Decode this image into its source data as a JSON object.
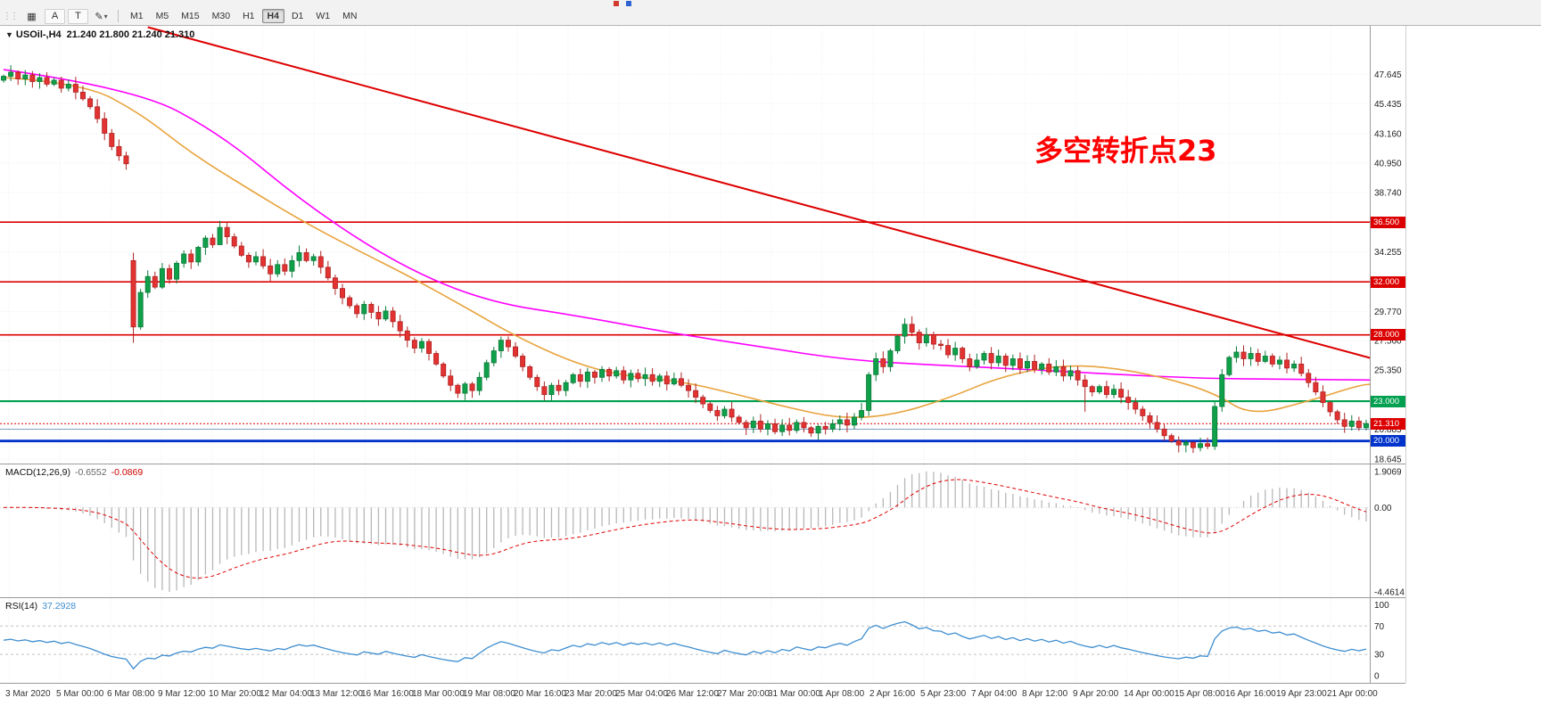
{
  "window": {
    "top_icons": [
      {
        "name": "window-icon-red",
        "color": "#d23a2e"
      },
      {
        "name": "window-icon-blue",
        "color": "#2e62d2"
      }
    ]
  },
  "toolbar": {
    "handle_glyph": "⋮⋮",
    "tools": [
      {
        "name": "chart-grid",
        "glyph": "▦"
      },
      {
        "name": "annotate-letter",
        "glyph": "A"
      },
      {
        "name": "text-tool",
        "glyph": "T"
      },
      {
        "name": "draw-tools",
        "glyph": "✎",
        "dropdown": "▾"
      }
    ],
    "timeframes": [
      {
        "label": "M1",
        "active": false
      },
      {
        "label": "M5",
        "active": false
      },
      {
        "label": "M15",
        "active": false
      },
      {
        "label": "M30",
        "active": false
      },
      {
        "label": "H1",
        "active": false
      },
      {
        "label": "H4",
        "active": true
      },
      {
        "label": "D1",
        "active": false
      },
      {
        "label": "W1",
        "active": false
      },
      {
        "label": "MN",
        "active": false
      }
    ]
  },
  "chart": {
    "title": {
      "collapse_icon": "▼",
      "symbol_period": "USOil-,H4",
      "ohlc": "21.240 21.800 21.240 21.310"
    },
    "annotation": {
      "text": "多空转折点23",
      "color": "#ff0000"
    },
    "hlines": [
      {
        "price": 36.5,
        "color": "#dd0000",
        "width": 1.6,
        "name": "resistance-line-36500"
      },
      {
        "price": 32.0,
        "color": "#dd0000",
        "width": 1.6,
        "name": "resistance-line-32000"
      },
      {
        "price": 28.0,
        "color": "#dd0000",
        "width": 1.6,
        "name": "resistance-line-28000"
      },
      {
        "price": 23.0,
        "color": "#00a050",
        "width": 2.2,
        "name": "support-line-23000"
      },
      {
        "price": 21.31,
        "color": "#dd0000",
        "width": 1,
        "dash": "2 2",
        "name": "last-price-line"
      },
      {
        "price": 20.885,
        "color": "#7f9fc6",
        "width": 1,
        "name": "minor-line-20885"
      },
      {
        "price": 20.0,
        "color": "#0033cc",
        "width": 2.8,
        "name": "support-line-20000"
      }
    ],
    "scale_labels": [
      {
        "price": 47.645,
        "text": "47.645"
      },
      {
        "price": 45.435,
        "text": "45.435"
      },
      {
        "price": 43.16,
        "text": "43.160"
      },
      {
        "price": 40.95,
        "text": "40.950"
      },
      {
        "price": 38.74,
        "text": "38.740"
      },
      {
        "price": 34.255,
        "text": "34.255"
      },
      {
        "price": 29.77,
        "text": "29.770"
      },
      {
        "price": 27.56,
        "text": "27.560"
      },
      {
        "price": 25.35,
        "text": "25.350"
      },
      {
        "price": 20.885,
        "text": "20.885"
      },
      {
        "price": 18.645,
        "text": "18.645"
      }
    ],
    "scale_tags": [
      {
        "price": 36.5,
        "label": "36.500",
        "bg": "#dd0000"
      },
      {
        "price": 32.0,
        "label": "32.000",
        "bg": "#dd0000"
      },
      {
        "price": 28.0,
        "label": "28.000",
        "bg": "#dd0000"
      },
      {
        "price": 23.0,
        "label": "23.000",
        "bg": "#00a050"
      },
      {
        "price": 21.31,
        "label": "21.310",
        "bg": "#dd0000"
      },
      {
        "price": 20.0,
        "label": "20.000",
        "bg": "#0033cc"
      }
    ]
  },
  "indicators": {
    "macd": {
      "label": "MACD(12,26,9)",
      "value_main": "-0.6552",
      "value_signal": "-0.0869",
      "scale_labels": [
        {
          "v": 1.9069,
          "t": "1.9069"
        },
        {
          "v": 0,
          "t": "0.00"
        },
        {
          "v": -4.4614,
          "t": "-4.4614"
        }
      ]
    },
    "rsi": {
      "label": "RSI(14)",
      "value": "37.2928",
      "scale_labels": [
        {
          "v": 100,
          "t": "100"
        },
        {
          "v": 70,
          "t": "70"
        },
        {
          "v": 30,
          "t": "30"
        },
        {
          "v": 0,
          "t": "0"
        }
      ],
      "level_lines": [
        70,
        30
      ]
    }
  },
  "chart_data": {
    "type": "candlestick",
    "symbol": "USOil-",
    "timeframe": "H4",
    "last_bar_ohlc": {
      "open": 21.24,
      "high": 21.8,
      "low": 21.24,
      "close": 21.31
    },
    "annotation": "多空转折点23",
    "horizontal_levels": [
      36.5,
      32.0,
      28.0,
      23.0,
      21.31,
      20.885,
      20.0
    ],
    "macd_readout": {
      "params": "12,26,9",
      "main": -0.6552,
      "signal": -0.0869,
      "scale_max": 1.9069,
      "scale_min": -4.4614
    },
    "rsi_readout": {
      "period": 14,
      "value": 37.2928
    },
    "closes": [
      47.5,
      47.8,
      47.3,
      47.6,
      47.1,
      47.4,
      46.9,
      47.2,
      46.6,
      46.9,
      46.3,
      45.8,
      45.2,
      44.3,
      43.2,
      42.2,
      41.5,
      40.9,
      28.6,
      31.2,
      32.4,
      31.6,
      33.0,
      32.2,
      33.4,
      34.1,
      33.5,
      34.6,
      35.3,
      34.8,
      36.1,
      35.4,
      34.7,
      34.0,
      33.5,
      33.9,
      33.2,
      32.6,
      33.3,
      32.8,
      33.6,
      34.2,
      33.6,
      33.9,
      33.1,
      32.3,
      31.5,
      30.8,
      30.2,
      29.6,
      30.3,
      29.7,
      29.2,
      29.8,
      29.0,
      28.3,
      27.6,
      27.0,
      27.5,
      26.6,
      25.8,
      24.9,
      24.2,
      23.6,
      24.3,
      23.8,
      24.8,
      25.9,
      26.8,
      27.6,
      27.1,
      26.4,
      25.6,
      24.8,
      24.1,
      23.5,
      24.2,
      23.8,
      24.4,
      25.0,
      24.5,
      25.2,
      24.8,
      25.4,
      24.9,
      25.3,
      24.6,
      25.1,
      24.7,
      25.0,
      24.5,
      24.9,
      24.3,
      24.7,
      24.2,
      23.8,
      23.3,
      22.8,
      22.3,
      21.9,
      22.4,
      21.8,
      21.4,
      21.0,
      21.5,
      20.9,
      21.3,
      20.7,
      21.2,
      20.8,
      21.4,
      21.0,
      20.6,
      21.1,
      20.9,
      21.3,
      21.6,
      21.2,
      21.8,
      22.3,
      25.0,
      26.2,
      25.6,
      26.8,
      27.9,
      28.8,
      28.2,
      27.4,
      28.0,
      27.3,
      27.2,
      26.5,
      27.0,
      26.2,
      25.6,
      26.1,
      26.6,
      25.9,
      26.4,
      25.7,
      26.2,
      25.5,
      26.0,
      25.4,
      25.8,
      25.2,
      25.6,
      24.9,
      25.3,
      24.6,
      24.1,
      23.7,
      24.1,
      23.5,
      23.9,
      23.3,
      22.9,
      22.4,
      21.9,
      21.4,
      20.9,
      20.4,
      20.0,
      19.7,
      19.9,
      19.5,
      19.8,
      19.6,
      22.6,
      25.0,
      26.3,
      26.7,
      26.2,
      26.6,
      26.0,
      26.4,
      25.8,
      26.1,
      25.5,
      25.8,
      25.1,
      24.4,
      23.7,
      22.9,
      22.2,
      21.6,
      21.1,
      21.5,
      21.0,
      21.31
    ],
    "open_overrides": {
      "0": 47.2,
      "18": 33.6
    },
    "hl_overrides": {
      "18": [
        34.2,
        27.4
      ],
      "30": [
        36.6,
        34.9
      ],
      "120": [
        25.2,
        21.9
      ],
      "126": [
        29.4,
        27.9
      ],
      "150": [
        25.0,
        22.2
      ],
      "165": [
        19.8,
        19.1
      ],
      "189": [
        21.6,
        20.8
      ]
    },
    "trendline": {
      "points": [
        [
          20,
          51.2
        ],
        [
          192,
          25.9
        ]
      ],
      "color": "#dd0000"
    },
    "ma_slow_magenta": [
      [
        0,
        48.0
      ],
      [
        18,
        46.6
      ],
      [
        30,
        43.2
      ],
      [
        42,
        37.8
      ],
      [
        55,
        33.2
      ],
      [
        67,
        30.5
      ],
      [
        80,
        29.4
      ],
      [
        92,
        28.2
      ],
      [
        105,
        27.1
      ],
      [
        117,
        26.1
      ],
      [
        130,
        25.7
      ],
      [
        142,
        25.4
      ],
      [
        155,
        25.0
      ],
      [
        167,
        24.7
      ],
      [
        179,
        24.65
      ],
      [
        190,
        24.6
      ]
    ],
    "ma_fast_orange": [
      [
        0,
        47.4
      ],
      [
        11,
        47.0
      ],
      [
        19,
        44.7
      ],
      [
        26,
        41.7
      ],
      [
        34,
        39.0
      ],
      [
        41,
        36.7
      ],
      [
        49,
        34.4
      ],
      [
        56,
        32.5
      ],
      [
        64,
        30.1
      ],
      [
        71,
        27.9
      ],
      [
        79,
        25.9
      ],
      [
        86,
        24.9
      ],
      [
        94,
        24.5
      ],
      [
        101,
        23.6
      ],
      [
        109,
        22.5
      ],
      [
        116,
        21.7
      ],
      [
        123,
        21.9
      ],
      [
        131,
        23.2
      ],
      [
        138,
        24.8
      ],
      [
        146,
        25.7
      ],
      [
        153,
        25.6
      ],
      [
        161,
        24.8
      ],
      [
        168,
        23.6
      ],
      [
        173,
        21.9
      ],
      [
        181,
        23.0
      ],
      [
        188,
        24.2
      ],
      [
        190,
        24.3
      ]
    ],
    "time_labels": [
      "3 Mar 2020",
      "5 Mar 00:00",
      "6 Mar 08:00",
      "9 Mar 12:00",
      "10 Mar 20:00",
      "12 Mar 04:00",
      "13 Mar 12:00",
      "16 Mar 16:00",
      "18 Mar 00:00",
      "19 Mar 08:00",
      "20 Mar 16:00",
      "23 Mar 20:00",
      "25 Mar 04:00",
      "26 Mar 12:00",
      "27 Mar 20:00",
      "31 Mar 00:00",
      "1 Apr 08:00",
      "2 Apr 16:00",
      "5 Apr 23:00",
      "7 Apr 04:00",
      "8 Apr 12:00",
      "9 Apr 20:00",
      "14 Apr 00:00",
      "15 Apr 08:00",
      "16 Apr 16:00",
      "19 Apr 23:00",
      "21 Apr 00:00"
    ],
    "colors": {
      "candle_up": "#0fa04a",
      "candle_down": "#e23232",
      "ma_fast": "#e8a33d",
      "ma_slow": "#ff00ff",
      "trend": "#dd0000",
      "macd_histogram": "#b8b8b8",
      "macd_signal": "#e00000",
      "rsi_line": "#3e8ed0"
    }
  }
}
